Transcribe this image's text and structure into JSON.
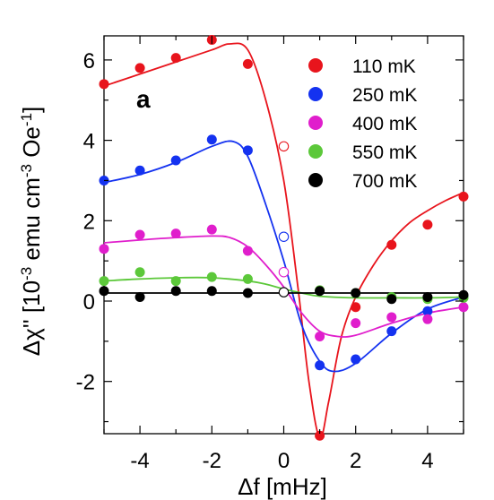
{
  "chart_data": {
    "type": "scatter",
    "title": "",
    "panel_label": "a",
    "xlabel": "Δf [mHz]",
    "ylabel_parts": {
      "main": "Δχ'' [10",
      "exp1": "-3",
      "mid": " emu cm",
      "exp2": "-3",
      "tail": " Oe",
      "exp3": "-1",
      "close": "]"
    },
    "xlim": [
      -5,
      5
    ],
    "ylim": [
      -3.3,
      6.6
    ],
    "xticks": [
      -4,
      -2,
      0,
      2,
      4
    ],
    "xtick_labels": [
      "-4",
      "-2",
      "0",
      "2",
      "4"
    ],
    "yticks": [
      -2,
      0,
      2,
      4,
      6
    ],
    "ytick_labels": [
      "-2",
      "0",
      "2",
      "4",
      "6"
    ],
    "grid": false,
    "legend_position": "top-right",
    "series": [
      {
        "name": "110 mK",
        "color": "#e8141c",
        "points": [
          [
            -5,
            5.4
          ],
          [
            -4,
            5.8
          ],
          [
            -3,
            6.05
          ],
          [
            -2,
            6.5
          ],
          [
            -1,
            5.9
          ],
          [
            1,
            -3.35
          ],
          [
            2,
            -0.15
          ],
          [
            3,
            1.4
          ],
          [
            4,
            1.9
          ],
          [
            5,
            2.6
          ]
        ],
        "open_points": [
          [
            0,
            3.85
          ]
        ],
        "fit": [
          [
            -5,
            5.35
          ],
          [
            -4,
            5.65
          ],
          [
            -3,
            5.95
          ],
          [
            -2,
            6.25
          ],
          [
            -1.5,
            6.4
          ],
          [
            -1,
            6.25
          ],
          [
            -0.5,
            5.0
          ],
          [
            0,
            3.0
          ],
          [
            0.4,
            0.3
          ],
          [
            0.7,
            -2.0
          ],
          [
            1,
            -3.4
          ],
          [
            1.25,
            -2.5
          ],
          [
            1.6,
            -0.9
          ],
          [
            2,
            0.1
          ],
          [
            2.5,
            0.9
          ],
          [
            3,
            1.5
          ],
          [
            3.5,
            1.95
          ],
          [
            4,
            2.25
          ],
          [
            4.5,
            2.5
          ],
          [
            5,
            2.7
          ]
        ]
      },
      {
        "name": "250 mK",
        "color": "#1432f0",
        "points": [
          [
            -5,
            3.0
          ],
          [
            -4,
            3.25
          ],
          [
            -3,
            3.5
          ],
          [
            -2,
            4.02
          ],
          [
            -1,
            3.75
          ],
          [
            1,
            -1.6
          ],
          [
            2,
            -1.45
          ],
          [
            3,
            -0.75
          ],
          [
            4,
            -0.25
          ],
          [
            5,
            0.1
          ]
        ],
        "open_points": [
          [
            0,
            1.6
          ]
        ],
        "fit": [
          [
            -5,
            2.95
          ],
          [
            -4,
            3.15
          ],
          [
            -3,
            3.45
          ],
          [
            -2,
            3.85
          ],
          [
            -1.4,
            3.97
          ],
          [
            -1,
            3.6
          ],
          [
            -0.5,
            2.4
          ],
          [
            0,
            1.0
          ],
          [
            0.5,
            -0.6
          ],
          [
            1,
            -1.5
          ],
          [
            1.4,
            -1.75
          ],
          [
            2,
            -1.55
          ],
          [
            3,
            -0.8
          ],
          [
            4,
            -0.2
          ],
          [
            5,
            0.1
          ]
        ]
      },
      {
        "name": "400 mK",
        "color": "#e01ecc",
        "points": [
          [
            -5,
            1.3
          ],
          [
            -4,
            1.65
          ],
          [
            -3,
            1.68
          ],
          [
            -2,
            1.78
          ],
          [
            -1,
            1.25
          ],
          [
            1,
            -0.88
          ],
          [
            2,
            -0.55
          ],
          [
            3,
            -0.4
          ],
          [
            4,
            -0.45
          ],
          [
            5,
            -0.15
          ]
        ],
        "open_points": [
          [
            0,
            0.72
          ]
        ],
        "fit": [
          [
            -5,
            1.45
          ],
          [
            -4,
            1.52
          ],
          [
            -3,
            1.58
          ],
          [
            -2,
            1.62
          ],
          [
            -1.5,
            1.58
          ],
          [
            -1,
            1.35
          ],
          [
            -0.5,
            0.9
          ],
          [
            0,
            0.35
          ],
          [
            0.5,
            -0.3
          ],
          [
            1,
            -0.75
          ],
          [
            1.5,
            -0.88
          ],
          [
            2,
            -0.85
          ],
          [
            3,
            -0.55
          ],
          [
            4,
            -0.3
          ],
          [
            5,
            -0.15
          ]
        ]
      },
      {
        "name": "550 mK",
        "color": "#5cc83a",
        "points": [
          [
            -5,
            0.5
          ],
          [
            -4,
            0.72
          ],
          [
            -3,
            0.5
          ],
          [
            -2,
            0.6
          ],
          [
            -1,
            0.55
          ],
          [
            1,
            0.27
          ],
          [
            2,
            0.2
          ],
          [
            3,
            0.1
          ],
          [
            4,
            0.05
          ],
          [
            5,
            0.08
          ]
        ],
        "open_points": [],
        "fit": [
          [
            -5,
            0.5
          ],
          [
            -4,
            0.55
          ],
          [
            -3,
            0.58
          ],
          [
            -2,
            0.58
          ],
          [
            -1,
            0.5
          ],
          [
            -0.5,
            0.42
          ],
          [
            0,
            0.3
          ],
          [
            0.5,
            0.2
          ],
          [
            1,
            0.12
          ],
          [
            2,
            0.08
          ],
          [
            3,
            0.08
          ],
          [
            4,
            0.08
          ],
          [
            5,
            0.1
          ]
        ]
      },
      {
        "name": "700 mK",
        "color": "#000000",
        "points": [
          [
            -5,
            0.25
          ],
          [
            -4,
            0.1
          ],
          [
            -3,
            0.25
          ],
          [
            -2,
            0.25
          ],
          [
            -1,
            0.2
          ],
          [
            1,
            0.25
          ],
          [
            2,
            0.2
          ],
          [
            3,
            0.05
          ],
          [
            4,
            0.1
          ],
          [
            5,
            0.15
          ]
        ],
        "open_points": [
          [
            0,
            0.22
          ]
        ],
        "fit": [
          [
            -5,
            0.2
          ],
          [
            5,
            0.2
          ]
        ]
      }
    ]
  }
}
